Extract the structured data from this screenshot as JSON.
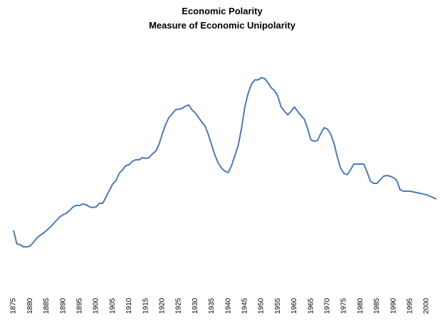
{
  "chart_data": {
    "type": "line",
    "title": "Economic Polarity",
    "subtitle": "Measure of Economic Unipolarity",
    "x": [
      1875,
      1876,
      1877,
      1878,
      1879,
      1880,
      1881,
      1882,
      1883,
      1884,
      1885,
      1886,
      1887,
      1888,
      1889,
      1890,
      1891,
      1892,
      1893,
      1894,
      1895,
      1896,
      1897,
      1898,
      1899,
      1900,
      1901,
      1902,
      1903,
      1904,
      1905,
      1906,
      1907,
      1908,
      1909,
      1910,
      1911,
      1912,
      1913,
      1914,
      1915,
      1916,
      1917,
      1918,
      1919,
      1920,
      1921,
      1922,
      1923,
      1924,
      1925,
      1926,
      1927,
      1928,
      1929,
      1930,
      1931,
      1932,
      1933,
      1934,
      1935,
      1936,
      1937,
      1938,
      1939,
      1940,
      1941,
      1942,
      1943,
      1944,
      1945,
      1946,
      1947,
      1948,
      1949,
      1950,
      1951,
      1952,
      1953,
      1954,
      1955,
      1956,
      1957,
      1958,
      1959,
      1960,
      1961,
      1962,
      1963,
      1964,
      1965,
      1966,
      1967,
      1968,
      1969,
      1970,
      1971,
      1972,
      1973,
      1974,
      1975,
      1976,
      1977,
      1978,
      1979,
      1980,
      1981,
      1982,
      1983,
      1984,
      1985,
      1986,
      1987,
      1988,
      1989,
      1990,
      1991,
      1992,
      1993,
      1994,
      1995,
      1996,
      1997,
      1998,
      1999,
      2000,
      2001,
      2002,
      2003
    ],
    "series": [
      {
        "name": "Economic Unipolarity",
        "color": "#4a7ab5",
        "values": [
          77,
          58,
          57,
          54,
          54,
          55,
          60,
          66,
          70,
          73,
          77,
          81,
          86,
          91,
          96,
          99,
          101,
          105,
          110,
          112,
          112,
          114,
          113,
          110,
          109,
          110,
          115,
          115,
          124,
          133,
          142,
          147,
          157,
          162,
          168,
          169,
          174,
          176,
          176,
          179,
          178,
          179,
          184,
          188,
          197,
          212,
          225,
          235,
          240,
          246,
          247,
          248,
          251,
          253,
          246,
          242,
          235,
          229,
          223,
          211,
          196,
          182,
          171,
          164,
          160,
          158,
          168,
          182,
          196,
          220,
          250,
          269,
          282,
          288,
          288,
          291,
          290,
          284,
          277,
          273,
          265,
          250,
          244,
          239,
          244,
          250,
          244,
          238,
          233,
          220,
          204,
          202,
          203,
          213,
          221,
          219,
          212,
          199,
          180,
          164,
          157,
          155,
          162,
          170,
          170,
          170,
          170,
          159,
          146,
          143,
          143,
          148,
          153,
          154,
          153,
          151,
          147,
          134,
          132,
          132,
          132,
          131,
          130,
          129,
          128,
          127,
          125,
          123,
          121
        ]
      }
    ],
    "xlim": [
      1875,
      2003
    ],
    "xticks": [
      1875,
      1880,
      1885,
      1890,
      1895,
      1900,
      1905,
      1910,
      1915,
      1920,
      1925,
      1930,
      1935,
      1940,
      1945,
      1950,
      1955,
      1960,
      1965,
      1970,
      1975,
      1980,
      1985,
      1990,
      1995,
      2000
    ],
    "ylim": [
      0,
      300
    ]
  }
}
